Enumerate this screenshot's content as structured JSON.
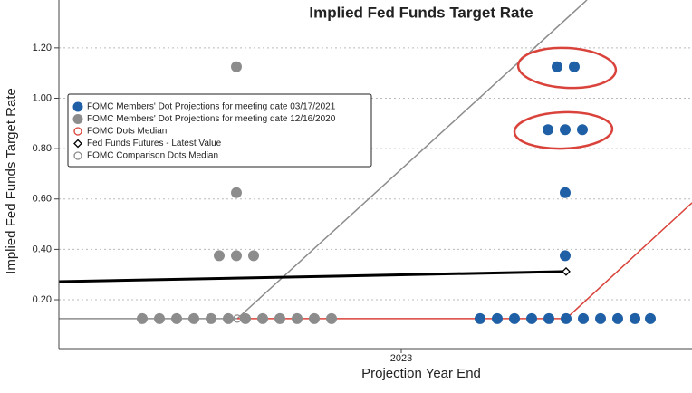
{
  "chart_data": {
    "type": "scatter",
    "title": "Implied Fed Funds Target Rate",
    "x_label": "Projection Year End",
    "y_label": "Implied Fed Funds Target Rate",
    "xlim": [
      2022.244,
      2023.642
    ],
    "xticks": [
      2023
    ],
    "ylim": [
      0.006,
      1.39
    ],
    "yticks": [
      {
        "value": 0.2,
        "label": "0.20"
      },
      {
        "value": 0.4,
        "label": "0.40"
      },
      {
        "value": 0.6,
        "label": "0.60"
      },
      {
        "value": 0.8,
        "label": "0.80"
      },
      {
        "value": 1.0,
        "label": "1.00"
      },
      {
        "value": 1.2,
        "label": "1.20"
      }
    ],
    "grid": true,
    "legend": "upper left",
    "series": [
      {
        "name": "FOMC Members' Dot Projections for meeting date 03/17/2021",
        "mode": "dots",
        "color": "#1f5fa6",
        "x": [
          2023.174,
          2023.212,
          2023.25,
          2023.288,
          2023.326,
          2023.364,
          2023.402,
          2023.44,
          2023.478,
          2023.516,
          2023.55,
          2023.362,
          2023.362,
          2023.324,
          2023.362,
          2023.4,
          2023.344,
          2023.382
        ],
        "values": [
          0.125,
          0.125,
          0.125,
          0.125,
          0.125,
          0.125,
          0.125,
          0.125,
          0.125,
          0.125,
          0.125,
          0.375,
          0.625,
          0.875,
          0.875,
          0.875,
          1.125,
          1.125
        ]
      },
      {
        "name": "FOMC Members' Dot Projections for meeting date 12/16/2020",
        "mode": "dots",
        "color": "#8c8c8c",
        "x": [
          2022.428,
          2022.466,
          2022.504,
          2022.542,
          2022.58,
          2022.618,
          2022.656,
          2022.694,
          2022.732,
          2022.77,
          2022.808,
          2022.846,
          2022.598,
          2022.636,
          2022.674,
          2022.636,
          2022.636
        ],
        "values": [
          0.125,
          0.125,
          0.125,
          0.125,
          0.125,
          0.125,
          0.125,
          0.125,
          0.125,
          0.125,
          0.125,
          0.125,
          0.375,
          0.375,
          0.375,
          0.625,
          1.125
        ]
      },
      {
        "name": "FOMC Dots Median",
        "mode": "line",
        "color": "#d9433b",
        "marker": "circle",
        "x": [
          2022.638,
          2023.364,
          2023.642
        ],
        "values": [
          0.125,
          0.125,
          0.585
        ],
        "markers": [
          false,
          true,
          false
        ]
      },
      {
        "name": "Fed Funds Futures - Latest Value",
        "mode": "line",
        "color": "#000000",
        "marker": "diamond",
        "width": 3,
        "x": [
          2022.244,
          2023.364
        ],
        "values": [
          0.272,
          0.312
        ],
        "markers": [
          false,
          true
        ]
      },
      {
        "name": "FOMC Comparison Dots Median",
        "mode": "line",
        "color": "#8c8c8c",
        "marker": "circle",
        "x": [
          2022.244,
          2022.638,
          2023.41
        ],
        "values": [
          0.125,
          0.125,
          1.39
        ],
        "markers": [
          false,
          true,
          false
        ]
      }
    ]
  }
}
